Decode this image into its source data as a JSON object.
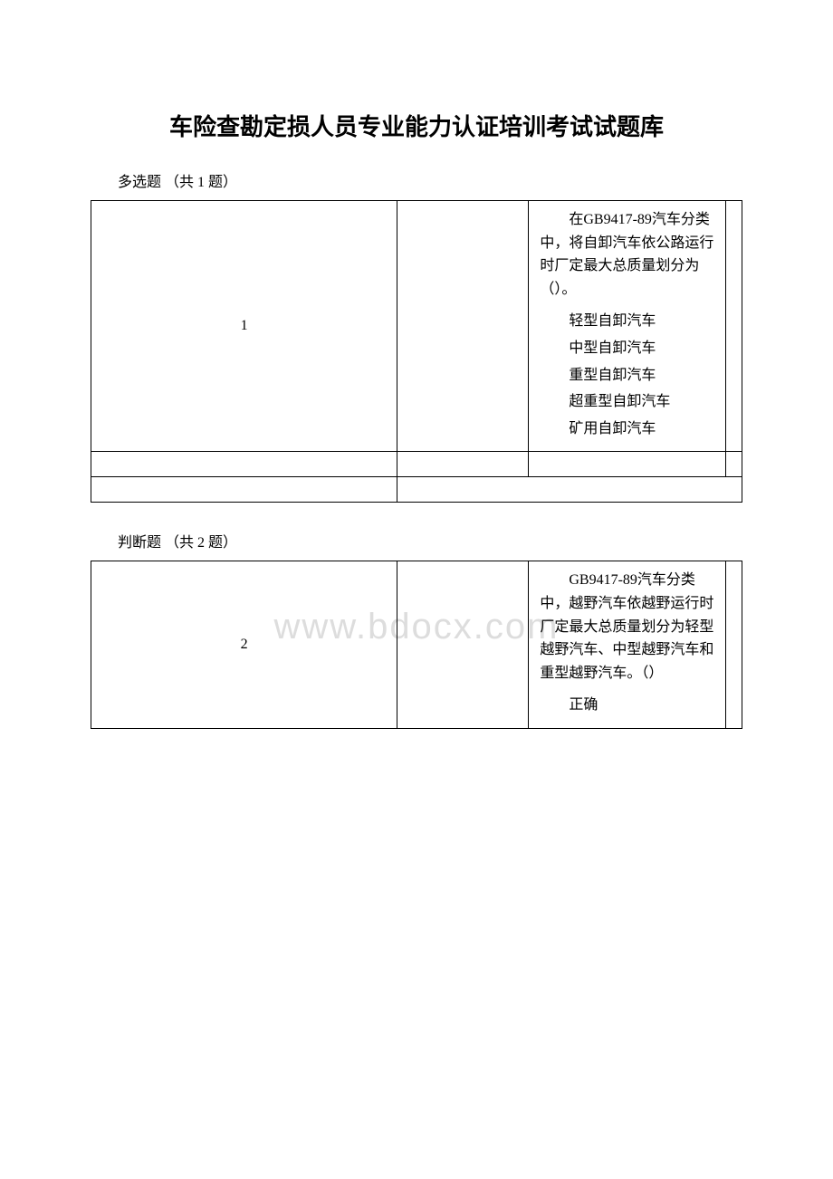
{
  "title": "车险查勘定损人员专业能力认证培训考试试题库",
  "watermark": "www.bdocx.com",
  "section1": {
    "label": "多选题 （共 1 题）",
    "number": "1",
    "question": "在GB9417-89汽车分类中，将自卸汽车依公路运行时厂定最大总质量划分为（）。",
    "options": [
      "轻型自卸汽车",
      "中型自卸汽车",
      "重型自卸汽车",
      "超重型自卸汽车",
      "矿用自卸汽车"
    ]
  },
  "section2": {
    "label": "判断题 （共 2 题）",
    "number": "2",
    "question": "GB9417-89汽车分类中，越野汽车依越野运行时厂定最大总质量划分为轻型越野汽车、中型越野汽车和重型越野汽车。（）",
    "options": [
      "正确"
    ]
  }
}
